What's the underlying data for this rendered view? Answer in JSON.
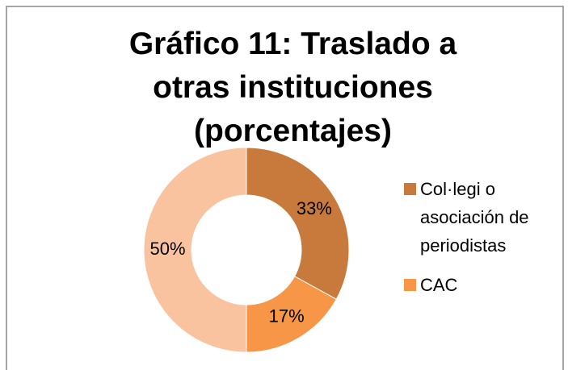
{
  "chart_data": {
    "type": "donut",
    "title": "Gráfico 11: Traslado a otras instituciones (porcentajes)",
    "categories": [
      "Col·legi o asociación de periodistas",
      "CAC",
      null
    ],
    "values": [
      33,
      17,
      50
    ],
    "value_labels": [
      "33%",
      "17%",
      "50%"
    ],
    "colors": [
      "#c87a3c",
      "#f79646",
      "#fac3a0"
    ],
    "legend": "right"
  }
}
